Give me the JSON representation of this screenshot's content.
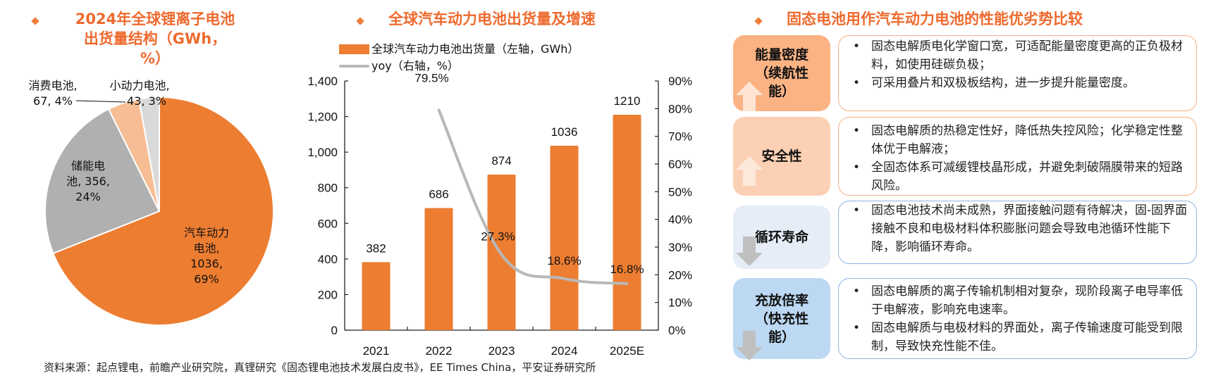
{
  "colors": {
    "accent": "#ee6a2e",
    "bar": "#ed7d31",
    "auto": "#ed7d31",
    "storage": "#b0b0b0",
    "consumer": "#f7be95",
    "small_power": "#d9d9d9",
    "yoy_line": "#b8b8b8",
    "box_energy": "#fbb384",
    "box_safety": "#fcd0b4",
    "box_cycle": "#e6edf7",
    "box_charge": "#bcd8f3",
    "border_orange": "#f6b183",
    "border_blue": "#8db4e2"
  },
  "chart_data": [
    {
      "type": "pie",
      "title": "2024年全球锂离子电池出货量结构（GWh，%）",
      "title_lines": [
        "2024年全球锂离子电池",
        "出货量结构（GWh，",
        "%）"
      ],
      "unit": "GWh",
      "slices": [
        {
          "name": "汽车动力电池",
          "value": 1036,
          "percent": 69,
          "label_lines": [
            "汽车动力",
            "电池,",
            "1036,",
            "69%"
          ]
        },
        {
          "name": "储能电池",
          "value": 356,
          "percent": 24,
          "label_lines": [
            "储能电",
            "池, 356,",
            "24%"
          ]
        },
        {
          "name": "消费电池",
          "value": 67,
          "percent": 4,
          "label_lines": [
            "消费电池,",
            "67, 4%"
          ]
        },
        {
          "name": "小动力电池",
          "value": 43,
          "percent": 3,
          "label_lines": [
            "小动力电池,",
            "43, 3%"
          ]
        }
      ]
    },
    {
      "type": "bar",
      "title": "全球汽车动力电池出货量及增速",
      "categories": [
        "2021",
        "2022",
        "2023",
        "2024",
        "2025E"
      ],
      "series": [
        {
          "name": "全球汽车动力电池出货量（左轴，GWh）",
          "axis": "left",
          "type": "bar",
          "values": [
            382,
            686,
            874,
            1036,
            1210
          ],
          "labels": [
            "382",
            "686",
            "874",
            "1036",
            "1210"
          ]
        },
        {
          "name": "yoy（右轴，%）",
          "axis": "right",
          "type": "line",
          "values": [
            null,
            79.5,
            27.3,
            18.6,
            16.8
          ],
          "labels": [
            "",
            "79.5%",
            "27.3%",
            "18.6%",
            "16.8%"
          ]
        }
      ],
      "ylim_left": [
        0,
        1400
      ],
      "yticks_left": [
        "0",
        "200",
        "400",
        "600",
        "800",
        "1,000",
        "1,200",
        "1,400"
      ],
      "ylim_right": [
        0,
        90
      ],
      "yticks_right": [
        "0%",
        "10%",
        "20%",
        "30%",
        "40%",
        "50%",
        "60%",
        "70%",
        "80%",
        "90%"
      ],
      "legend": "top-left",
      "grid": false
    }
  ],
  "comparison": {
    "title": "固态电池用作汽车动力电池的性能优劣势比较",
    "rows": [
      {
        "label_lines": [
          "能量密度",
          "（续航性",
          "能）"
        ],
        "direction": "up",
        "points": [
          "固态电解质电化学窗口宽，可适配能量密度更高的正负极材料，如使用硅碳负极；",
          "可采用叠片和双极板结构，进一步提升能量密度。"
        ]
      },
      {
        "label_lines": [
          "安全性"
        ],
        "direction": "up",
        "points": [
          "固态电解质的热稳定性好，降低热失控风险；化学稳定性整体优于电解液；",
          "全固态体系可减缓锂枝晶形成，并避免刺破隔膜带来的短路风险。"
        ]
      },
      {
        "label_lines": [
          "循环寿命"
        ],
        "direction": "down",
        "points": [
          "固态电池技术尚未成熟，界面接触问题有待解决，固-固界面接触不良和电极材料体积膨胀问题会导致电池循环性能下降，影响循环寿命。"
        ]
      },
      {
        "label_lines": [
          "充放倍率",
          "（快充性",
          "能）"
        ],
        "direction": "down",
        "points": [
          "固态电解质的离子传输机制相对复杂，现阶段离子电导率低于电解液，影响充电速率。",
          "固态电解质与电极材料的界面处，离子传输速度可能受到限制，导致快充性能不佳。"
        ]
      }
    ]
  },
  "source": "资料来源：起点锂电，前瞻产业研究院，真锂研究《固态锂电池技术发展白皮书》，EE Times China，平安证券研究所"
}
